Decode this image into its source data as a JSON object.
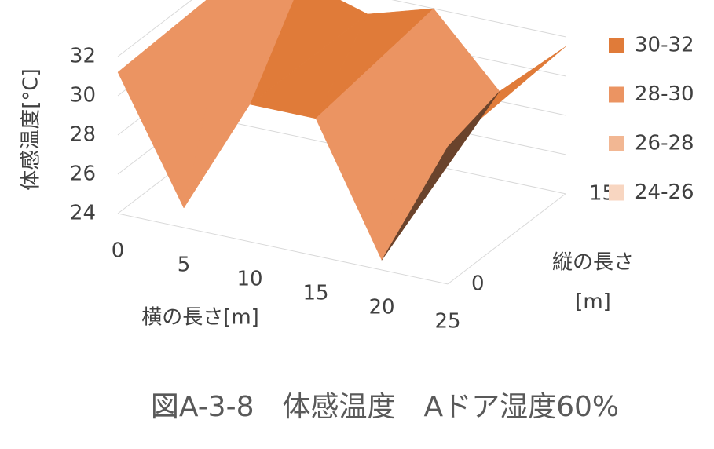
{
  "chart_data": {
    "type": "surface",
    "title": "図A-3-8　体感温度　Aドア湿度60%",
    "z_title": "体感温度[°C]",
    "x_title": "横の長さ[m]",
    "depth_title": [
      "縦の長さ",
      "[m]"
    ],
    "x": [
      0,
      5,
      10,
      15,
      20,
      25
    ],
    "depth": [
      0,
      15
    ],
    "z": [
      [
        31.2,
        25,
        31,
        31,
        24.5,
        31
      ],
      [
        31.5,
        32,
        31,
        32,
        28.5,
        31.5
      ]
    ],
    "xlim": [
      0,
      25
    ],
    "xticks": [
      0,
      5,
      10,
      15,
      20,
      25
    ],
    "depthlim": [
      0,
      15
    ],
    "depthticks": [
      0,
      15
    ],
    "zlim": [
      24,
      32
    ],
    "zticks": [
      24,
      26,
      28,
      30,
      32
    ],
    "grid": true,
    "legend": "right",
    "bands": [
      {
        "name": "30-32",
        "range": [
          30,
          32
        ],
        "color": "#e07b39"
      },
      {
        "name": "28-30",
        "range": [
          28,
          30
        ],
        "color": "#eb9462"
      },
      {
        "name": "26-28",
        "range": [
          26,
          28
        ],
        "color": "#f2b793"
      },
      {
        "name": "24-26",
        "range": [
          24,
          26
        ],
        "color": "#f8d6c1"
      }
    ]
  }
}
